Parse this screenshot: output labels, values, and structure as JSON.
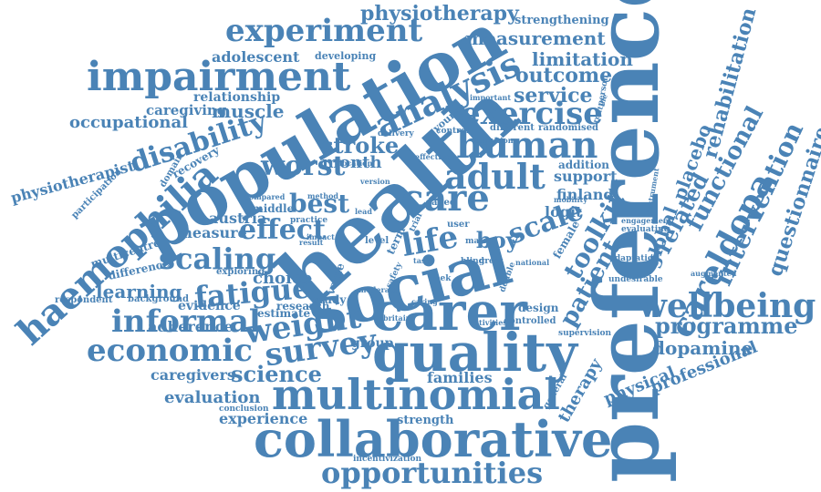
{
  "style": {
    "word_color": "#4a83b6",
    "background": "#ffffff"
  },
  "words": [
    "preference",
    "health",
    "population",
    "social",
    "carer",
    "quality",
    "collaborative",
    "multinomial",
    "impairment",
    "experiment",
    "analysis",
    "opportunities",
    "economic",
    "survey",
    "care",
    "human",
    "adult",
    "exercise",
    "haemophilia",
    "disability",
    "wellbeing",
    "informal",
    "weight",
    "fatigue",
    "scaling",
    "effect",
    "worst",
    "best",
    "life",
    "boy",
    "scale",
    "toolkit",
    "patient",
    "careldopa",
    "intervention",
    "questionnaire",
    "functional",
    "rehabilitation",
    "related",
    "global",
    "placebo",
    "programme",
    "dopamine",
    "professional",
    "physiotherapy",
    "measurement",
    "strengthening",
    "limitation",
    "outcome",
    "service",
    "adolescent",
    "developing",
    "relationship",
    "caregiving",
    "muscle",
    "occupational",
    "physiotherapist",
    "recovery",
    "domain",
    "participation",
    "stroke",
    "month",
    "learning",
    "evidence",
    "adherence",
    "caregivers",
    "science",
    "evaluation",
    "experience",
    "families",
    "strength",
    "incentivization",
    "therapy",
    "physical",
    "general",
    "austria",
    "middle",
    "measure",
    "multicentre",
    "difference",
    "exploring",
    "choice",
    "respondent",
    "background",
    "estimate",
    "research",
    "study",
    "group",
    "finland",
    "support",
    "addition",
    "logit",
    "female",
    "design",
    "controlled",
    "supervision",
    "adaptation",
    "undesirable",
    "engagement",
    "evaluating",
    "augmented",
    "compared",
    "method",
    "conclusion",
    "aged",
    "user",
    "male",
    "week",
    "different",
    "randomised",
    "delivery",
    "control",
    "important",
    "young",
    "routine",
    "person",
    "mobility",
    "instrument",
    "term",
    "trial",
    "level",
    "task",
    "safety",
    "value",
    "version",
    "activities",
    "caring",
    "britain",
    "impact",
    "national",
    "lead",
    "cognition",
    "effective",
    "location",
    "practice",
    "blind",
    "great",
    "double",
    "moderate",
    "result"
  ]
}
